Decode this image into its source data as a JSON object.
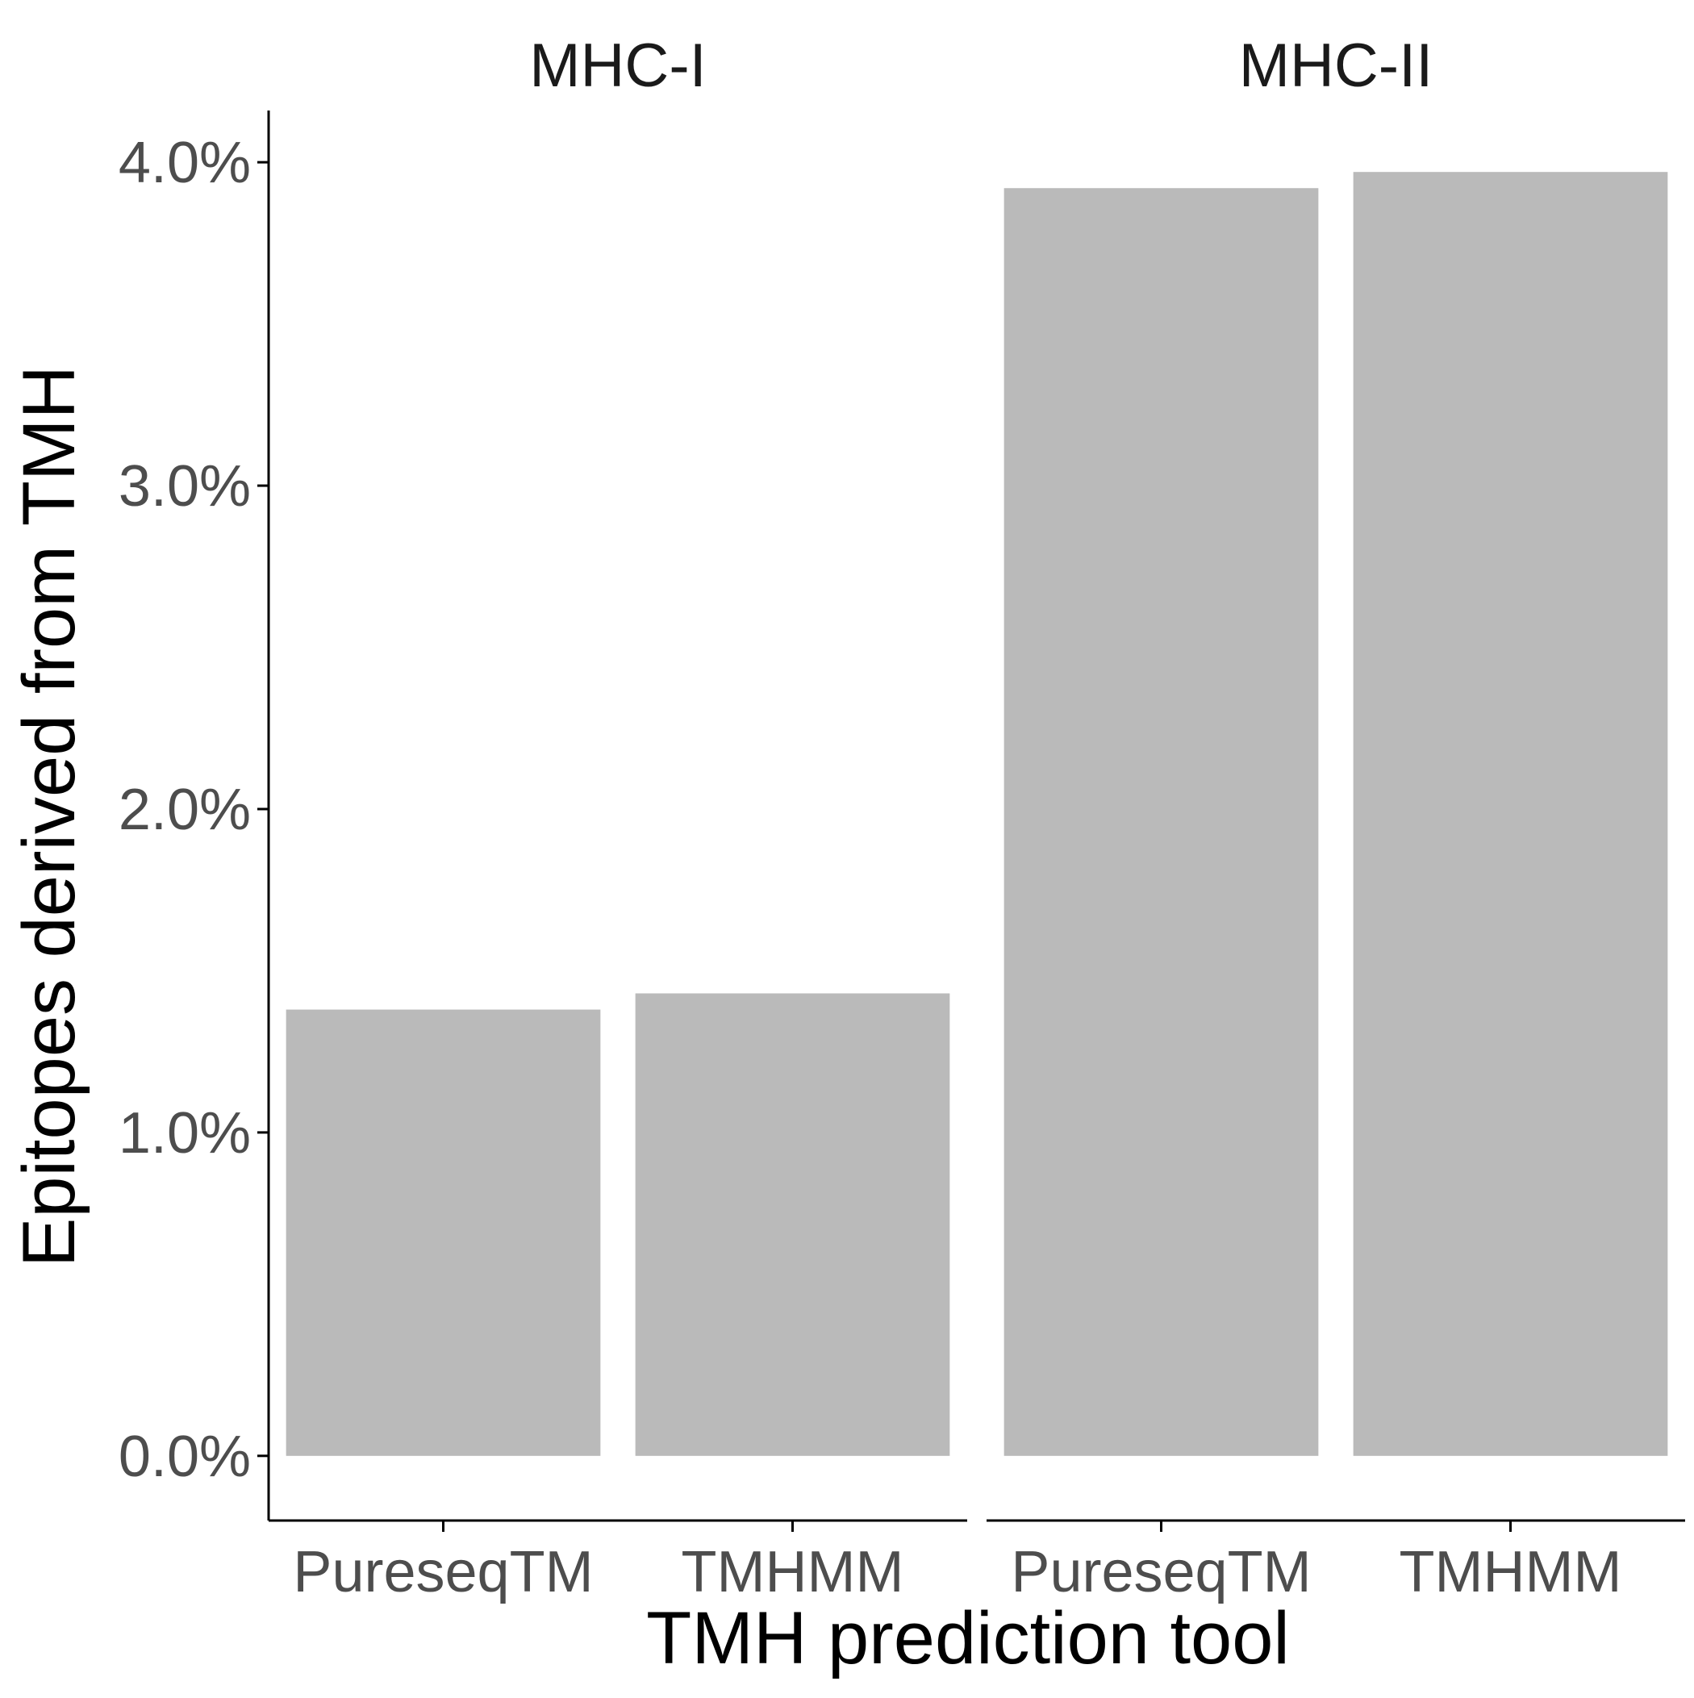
{
  "chart_data": {
    "type": "bar",
    "ylabel": "Epitopes derived from TMH",
    "xlabel": "TMH prediction tool",
    "ylim": [
      -0.2,
      4.16
    ],
    "y_ticks": [
      0.0,
      1.0,
      2.0,
      3.0,
      4.0
    ],
    "y_tick_labels": [
      "0.0%",
      "1.0%",
      "2.0%",
      "3.0%",
      "4.0%"
    ],
    "y_unit": "%",
    "grid": false,
    "bar_color": "#BABABA",
    "axis_color": "#000000",
    "tick_label_color": "#4D4D4D",
    "panels": [
      {
        "title": "MHC-I",
        "categories": [
          "PureseqTM",
          "TMHMM"
        ],
        "values": [
          1.38,
          1.43
        ]
      },
      {
        "title": "MHC-II",
        "categories": [
          "PureseqTM",
          "TMHMM"
        ],
        "values": [
          3.92,
          3.97
        ]
      }
    ]
  }
}
